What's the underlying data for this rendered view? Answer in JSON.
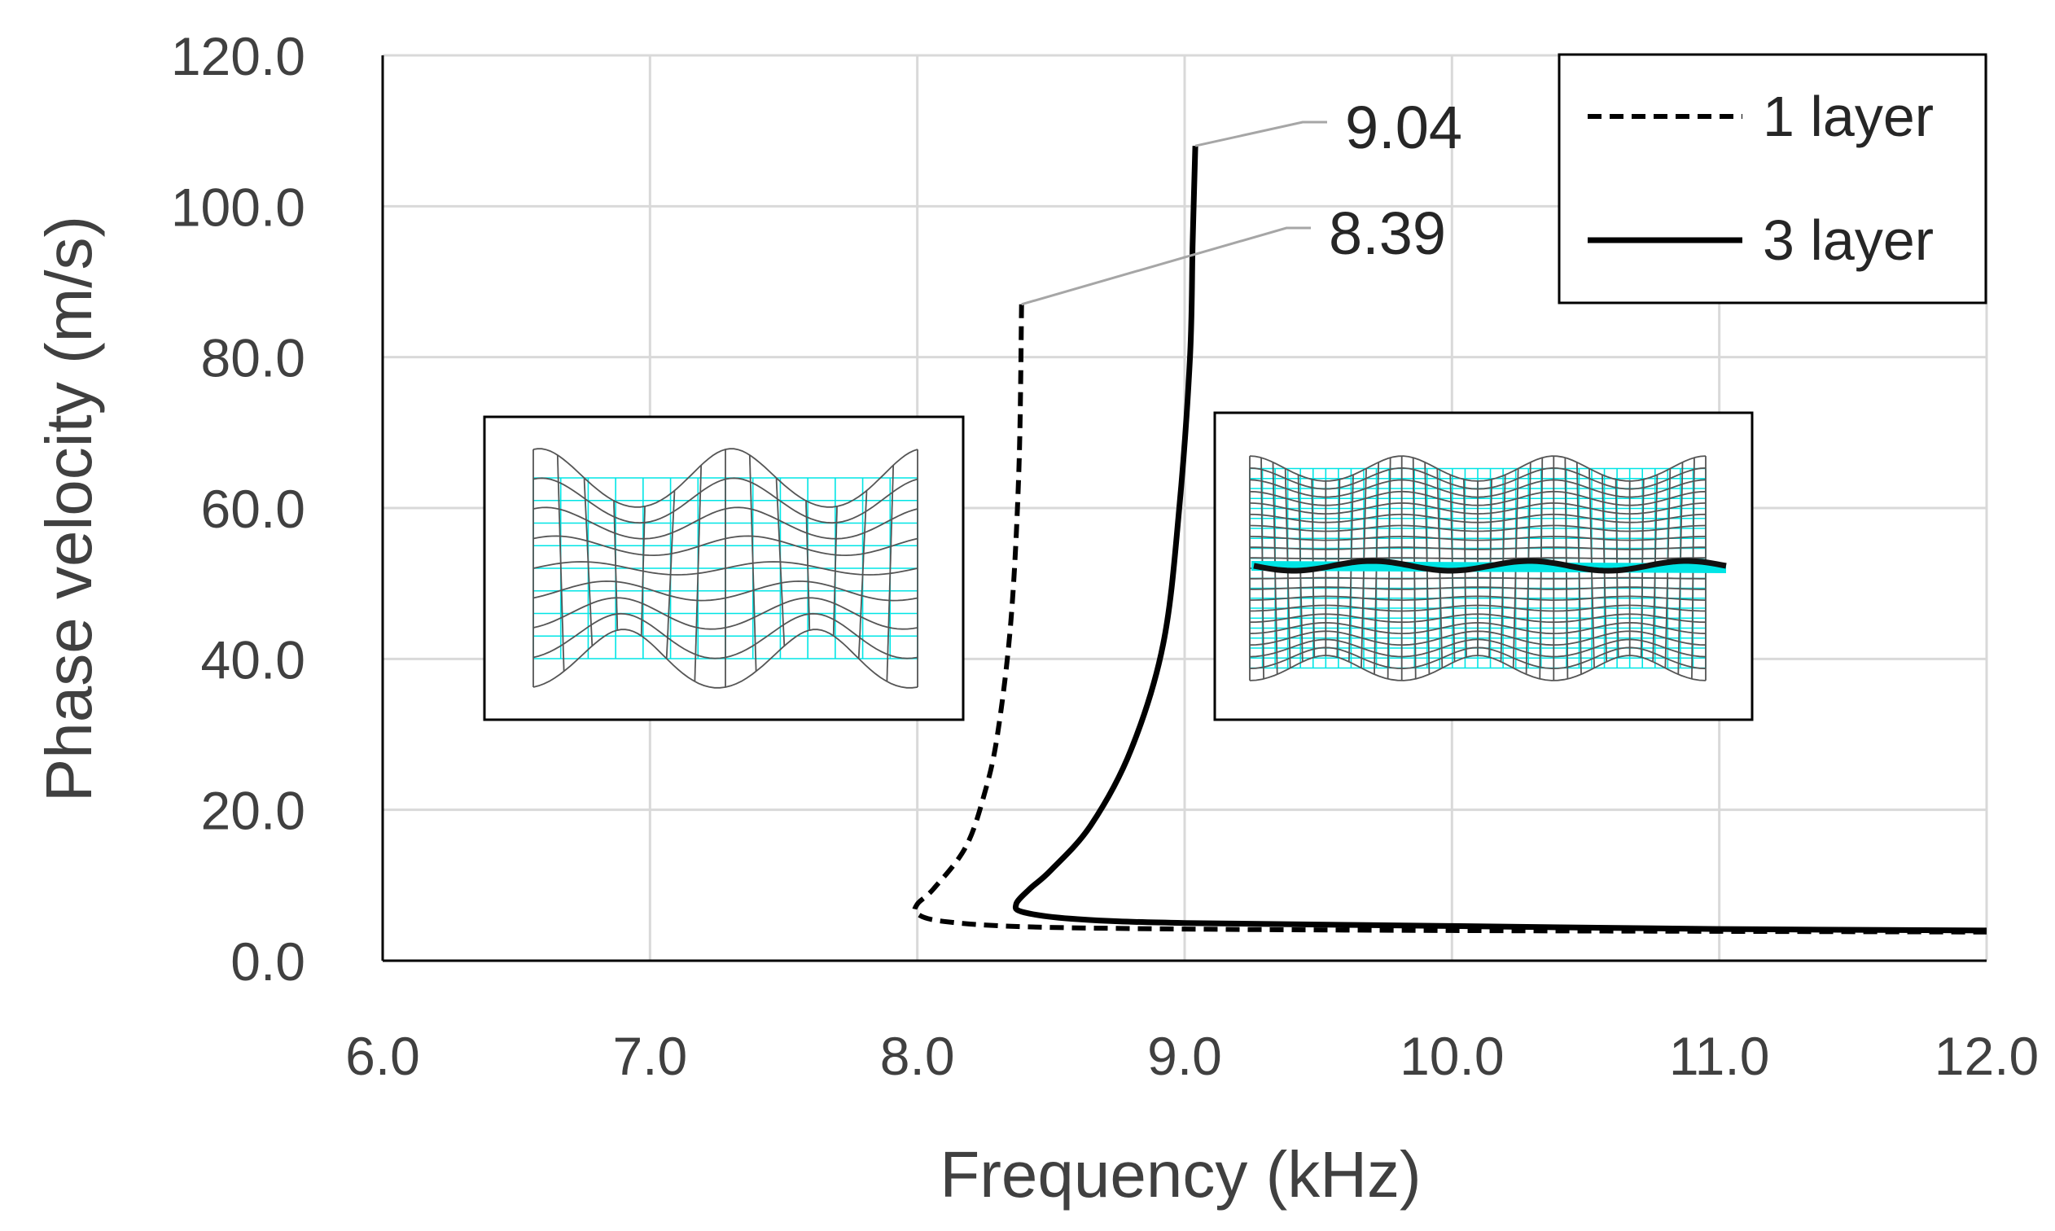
{
  "chart_data": {
    "type": "line",
    "xlabel": "Frequency (kHz)",
    "ylabel": "Phase velocity (m/s)",
    "xlim": [
      6.0,
      12.0
    ],
    "ylim": [
      0.0,
      120.0
    ],
    "grid": true,
    "x_ticks": [
      "6.0",
      "7.0",
      "8.0",
      "9.0",
      "10.0",
      "11.0",
      "12.0"
    ],
    "y_ticks": [
      "0.0",
      "20.0",
      "40.0",
      "60.0",
      "80.0",
      "100.0",
      "120.0"
    ],
    "legend_position": "top-right",
    "series": [
      {
        "name": "1 layer",
        "style": "dashed",
        "color": "#000000",
        "points": [
          [
            8.39,
            87
          ],
          [
            8.38,
            65
          ],
          [
            8.35,
            45
          ],
          [
            8.3,
            30
          ],
          [
            8.25,
            22
          ],
          [
            8.18,
            15
          ],
          [
            8.06,
            9.5
          ],
          [
            8.0,
            7.5
          ],
          [
            8.0,
            6.2
          ],
          [
            8.1,
            5.2
          ],
          [
            8.4,
            4.5
          ],
          [
            9.0,
            4.2
          ],
          [
            10.0,
            4.0
          ],
          [
            11.0,
            3.9
          ],
          [
            12.0,
            3.8
          ]
        ]
      },
      {
        "name": "3 layer",
        "style": "solid",
        "color": "#000000",
        "points": [
          [
            9.04,
            108
          ],
          [
            9.03,
            95
          ],
          [
            9.02,
            80
          ],
          [
            8.98,
            60
          ],
          [
            8.92,
            42
          ],
          [
            8.8,
            28
          ],
          [
            8.65,
            18
          ],
          [
            8.5,
            12
          ],
          [
            8.42,
            9.5
          ],
          [
            8.37,
            7.5
          ],
          [
            8.4,
            6.4
          ],
          [
            8.6,
            5.5
          ],
          [
            9.0,
            5.0
          ],
          [
            10.0,
            4.6
          ],
          [
            11.0,
            4.2
          ],
          [
            12.0,
            4.0
          ]
        ]
      }
    ],
    "annotations": [
      {
        "text": "9.04",
        "x": 9.04,
        "y": 108
      },
      {
        "text": "8.39",
        "x": 8.39,
        "y": 87
      }
    ],
    "insets": [
      {
        "name": "1-layer-mode-shape",
        "near_x": 7.3,
        "near_y": 50
      },
      {
        "name": "3-layer-mode-shape",
        "near_x": 11.1,
        "near_y": 50
      }
    ]
  },
  "colors": {
    "grid": "#d9d9d9",
    "axis": "#000000",
    "mesh_ref": "#00e5e5",
    "mesh_def": "#555555"
  }
}
